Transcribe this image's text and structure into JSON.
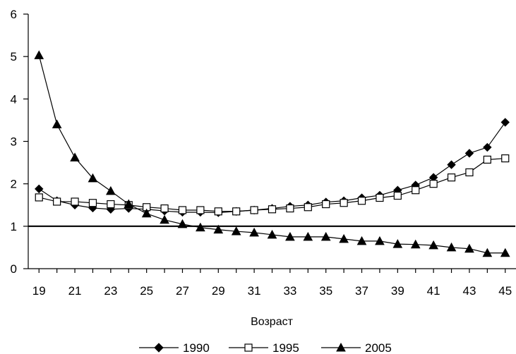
{
  "chart_data": {
    "type": "line",
    "xlabel": "Возраст",
    "ylabel": "",
    "title": "",
    "x": [
      19,
      20,
      21,
      22,
      23,
      24,
      25,
      26,
      27,
      28,
      29,
      30,
      31,
      32,
      33,
      34,
      35,
      36,
      37,
      38,
      39,
      40,
      41,
      42,
      43,
      44,
      45
    ],
    "xticks": [
      "19",
      "21",
      "23",
      "25",
      "27",
      "29",
      "31",
      "33",
      "35",
      "37",
      "39",
      "41",
      "43",
      "45"
    ],
    "yticks": [
      "0",
      "1",
      "2",
      "3",
      "4",
      "5",
      "6"
    ],
    "xlim": [
      18.4,
      45.6
    ],
    "ylim": [
      0,
      6
    ],
    "reference_line": 1,
    "legend_position": "bottom",
    "series": [
      {
        "name": "1990",
        "marker": "diamond-filled",
        "values": [
          1.88,
          1.6,
          1.5,
          1.43,
          1.4,
          1.42,
          1.4,
          1.36,
          1.33,
          1.33,
          1.32,
          1.35,
          1.38,
          1.42,
          1.47,
          1.5,
          1.57,
          1.6,
          1.67,
          1.73,
          1.85,
          1.97,
          2.15,
          2.45,
          2.72,
          2.86,
          3.45
        ]
      },
      {
        "name": "1995",
        "marker": "square-open",
        "values": [
          1.68,
          1.58,
          1.58,
          1.55,
          1.52,
          1.5,
          1.45,
          1.42,
          1.38,
          1.38,
          1.35,
          1.35,
          1.38,
          1.4,
          1.42,
          1.45,
          1.52,
          1.55,
          1.6,
          1.67,
          1.72,
          1.85,
          2.0,
          2.15,
          2.27,
          2.57,
          2.6
        ]
      },
      {
        "name": "2005",
        "marker": "triangle-filled",
        "values": [
          5.03,
          3.4,
          2.62,
          2.13,
          1.83,
          1.52,
          1.3,
          1.15,
          1.05,
          0.97,
          0.92,
          0.88,
          0.85,
          0.8,
          0.75,
          0.75,
          0.75,
          0.7,
          0.65,
          0.65,
          0.58,
          0.57,
          0.55,
          0.5,
          0.47,
          0.37,
          0.37
        ]
      }
    ]
  }
}
